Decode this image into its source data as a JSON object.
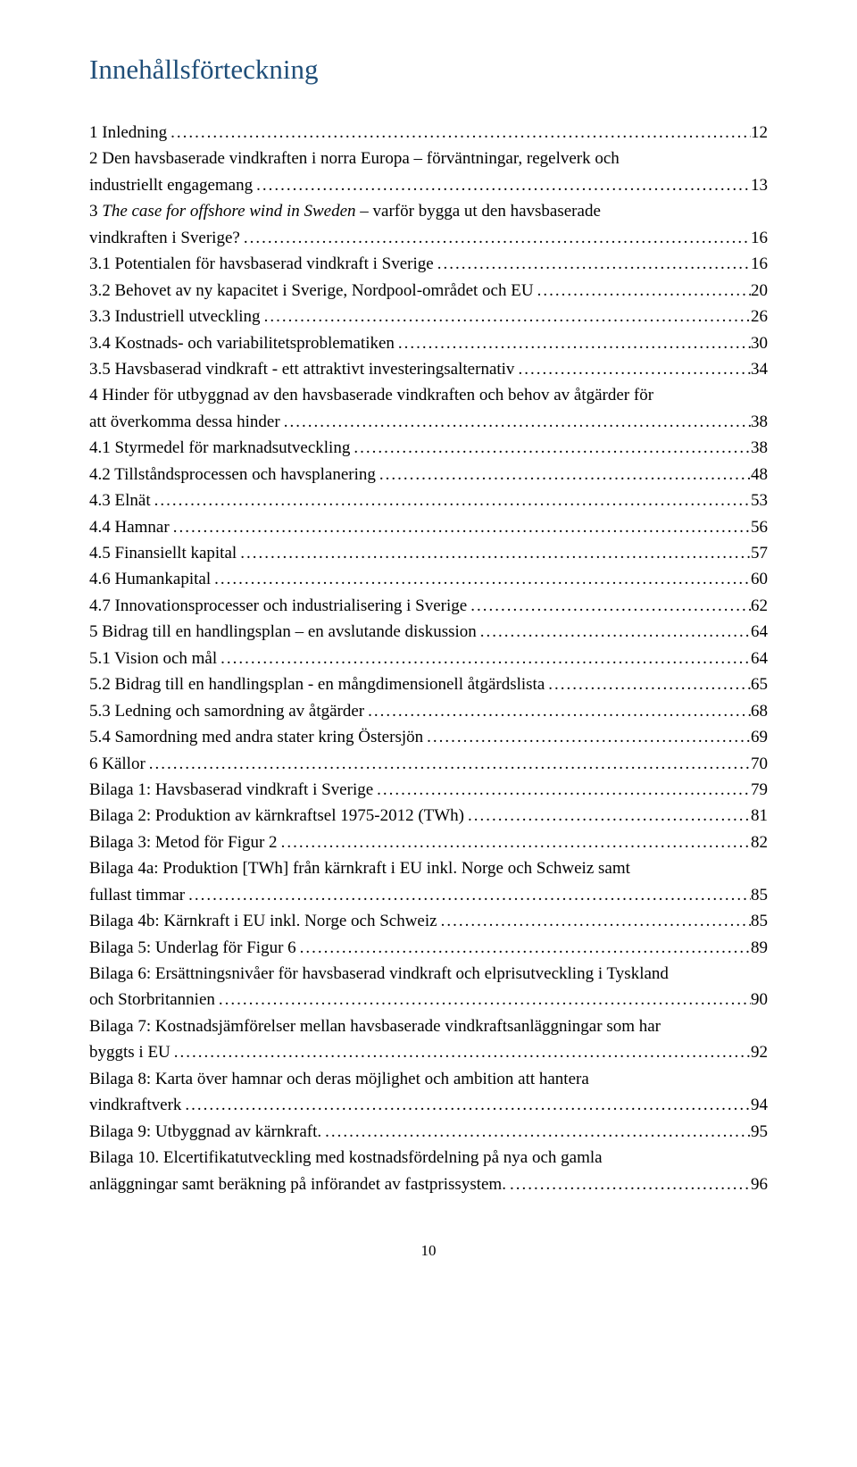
{
  "title_color": "#1f4e79",
  "text_color": "#000000",
  "background_color": "#ffffff",
  "title": "Innehållsförteckning",
  "page_number": "10",
  "entries": [
    {
      "text": "1  Inledning",
      "page": "12"
    },
    {
      "text_line1": "2  Den havsbaserade vindkraften i norra Europa – förväntningar, regelverk och",
      "text_line2": "industriellt engagemang",
      "page": "13"
    },
    {
      "text_line1": "3  The case for offshore wind in Sweden – varför bygga ut den havsbaserade",
      "italic_part": "The case for offshore wind in Sweden",
      "text_line2": "vindkraften i Sverige?",
      "page": "16"
    },
    {
      "text": "3.1  Potentialen för havsbaserad vindkraft i Sverige",
      "page": "16"
    },
    {
      "text": "3.2  Behovet av ny kapacitet i Sverige, Nordpool-området och EU",
      "page": "20"
    },
    {
      "text": "3.3  Industriell utveckling",
      "page": "26"
    },
    {
      "text": "3.4  Kostnads- och variabilitetsproblematiken",
      "page": "30"
    },
    {
      "text": "3.5  Havsbaserad vindkraft - ett attraktivt investeringsalternativ",
      "page": "34"
    },
    {
      "text_line1": "4  Hinder för utbyggnad av den havsbaserade vindkraften och behov av åtgärder för",
      "text_line2": "att överkomma dessa hinder",
      "page": "38"
    },
    {
      "text": "4.1  Styrmedel för marknadsutveckling",
      "page": "38"
    },
    {
      "text": "4.2  Tillståndsprocessen och havsplanering",
      "page": "48"
    },
    {
      "text": "4.3  Elnät",
      "page": "53"
    },
    {
      "text": "4.4  Hamnar",
      "page": "56"
    },
    {
      "text": "4.5  Finansiellt kapital",
      "page": "57"
    },
    {
      "text": "4.6  Humankapital",
      "page": "60"
    },
    {
      "text": "4.7  Innovationsprocesser och industrialisering i Sverige",
      "page": "62"
    },
    {
      "text": "5    Bidrag till en handlingsplan – en avslutande diskussion",
      "page": "64"
    },
    {
      "text": "5.1  Vision och mål",
      "page": "64"
    },
    {
      "text": "5.2 Bidrag till en handlingsplan - en mångdimensionell åtgärdslista",
      "page": "65"
    },
    {
      "text": "5.3 Ledning och samordning av åtgärder",
      "page": "68"
    },
    {
      "text": "5.4 Samordning med andra stater kring Östersjön",
      "page": "69"
    },
    {
      "text": "6    Källor",
      "page": "70"
    },
    {
      "text": "Bilaga 1: Havsbaserad vindkraft i Sverige",
      "page": "79"
    },
    {
      "text": "Bilaga 2: Produktion av kärnkraftsel 1975-2012 (TWh)",
      "page": "81"
    },
    {
      "text": "Bilaga 3: Metod för Figur 2",
      "page": "82"
    },
    {
      "text_line1": "Bilaga 4a: Produktion [TWh] från kärnkraft i EU inkl. Norge och Schweiz samt",
      "text_line2": "fullast timmar",
      "page": "85"
    },
    {
      "text": "Bilaga 4b: Kärnkraft i EU inkl. Norge och Schweiz",
      "page": "85"
    },
    {
      "text": "Bilaga 5: Underlag för Figur 6",
      "page": "89"
    },
    {
      "text_line1": "Bilaga 6: Ersättningsnivåer för havsbaserad vindkraft och elprisutveckling i Tyskland",
      "text_line2": "och Storbritannien",
      "page": "90"
    },
    {
      "text_line1": "Bilaga 7: Kostnadsjämförelser mellan havsbaserade vindkraftsanläggningar som har",
      "text_line2": "byggts i EU",
      "page": "92"
    },
    {
      "text_line1": "Bilaga 8: Karta över hamnar och deras möjlighet och ambition att hantera",
      "text_line2": "vindkraftverk",
      "page": "94"
    },
    {
      "text": "Bilaga 9: Utbyggnad av kärnkraft.",
      "page": "95"
    },
    {
      "text_line1": "Bilaga 10. Elcertifikatutveckling med kostnadsfördelning på nya och gamla",
      "text_line2": "anläggningar samt beräkning på införandet av fastprissystem.",
      "page": "96"
    }
  ]
}
